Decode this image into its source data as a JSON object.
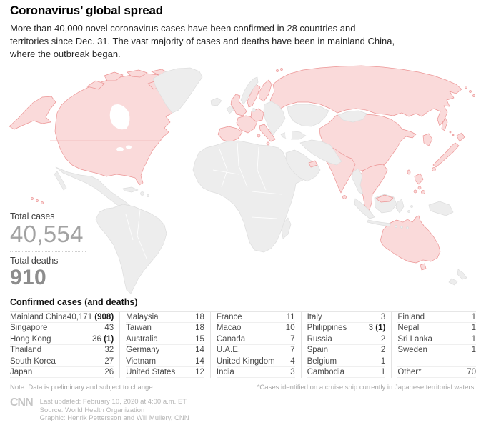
{
  "header": {
    "title": "Coronavirus’ global spread",
    "subtitle_lines": [
      "More than 40,000 novel coronavirus cases have been confirmed in 28 countries and",
      "territories since Dec. 31. The vast majority of cases and deaths have been in mainland China,",
      "where the outbreak began."
    ]
  },
  "stats": {
    "total_cases_label": "Total cases",
    "total_cases_value": "40,554",
    "total_deaths_label": "Total deaths",
    "total_deaths_value": "910"
  },
  "map": {
    "affected_fill": "#fadada",
    "affected_border": "#ec9595",
    "unaffected_fill": "#ededed",
    "unaffected_border": "#dedede",
    "total_cases_color": "#a2a2a2",
    "total_deaths_color": "#8d8d8d"
  },
  "table": {
    "title": "Confirmed cases (and deaths)",
    "columns": [
      [
        {
          "country": "Mainland China",
          "cases": "40,171",
          "deaths": "(908)"
        },
        {
          "country": "Singapore",
          "cases": "43",
          "deaths": ""
        },
        {
          "country": "Hong Kong",
          "cases": "36",
          "deaths": "(1)"
        },
        {
          "country": "Thailand",
          "cases": "32",
          "deaths": ""
        },
        {
          "country": "South Korea",
          "cases": "27",
          "deaths": ""
        },
        {
          "country": "Japan",
          "cases": "26",
          "deaths": ""
        }
      ],
      [
        {
          "country": "Malaysia",
          "cases": "18",
          "deaths": ""
        },
        {
          "country": "Taiwan",
          "cases": "18",
          "deaths": ""
        },
        {
          "country": "Australia",
          "cases": "15",
          "deaths": ""
        },
        {
          "country": "Germany",
          "cases": "14",
          "deaths": ""
        },
        {
          "country": "Vietnam",
          "cases": "14",
          "deaths": ""
        },
        {
          "country": "United States",
          "cases": "12",
          "deaths": ""
        }
      ],
      [
        {
          "country": "France",
          "cases": "11",
          "deaths": ""
        },
        {
          "country": "Macao",
          "cases": "10",
          "deaths": ""
        },
        {
          "country": "Canada",
          "cases": "7",
          "deaths": ""
        },
        {
          "country": "U.A.E.",
          "cases": "7",
          "deaths": ""
        },
        {
          "country": "United Kingdom",
          "cases": "4",
          "deaths": ""
        },
        {
          "country": "India",
          "cases": "3",
          "deaths": ""
        }
      ],
      [
        {
          "country": "Italy",
          "cases": "3",
          "deaths": ""
        },
        {
          "country": "Philippines",
          "cases": "3",
          "deaths": "(1)"
        },
        {
          "country": "Russia",
          "cases": "2",
          "deaths": ""
        },
        {
          "country": "Spain",
          "cases": "2",
          "deaths": ""
        },
        {
          "country": "Belgium",
          "cases": "1",
          "deaths": ""
        },
        {
          "country": "Cambodia",
          "cases": "1",
          "deaths": ""
        }
      ],
      [
        {
          "country": "Finland",
          "cases": "1",
          "deaths": ""
        },
        {
          "country": "Nepal",
          "cases": "1",
          "deaths": ""
        },
        {
          "country": "Sri Lanka",
          "cases": "1",
          "deaths": ""
        },
        {
          "country": "Sweden",
          "cases": "1",
          "deaths": ""
        },
        {
          "country": "",
          "cases": "",
          "deaths": ""
        },
        {
          "country": "Other*",
          "cases": "70",
          "deaths": ""
        }
      ]
    ]
  },
  "notes": {
    "left": "Note: Data is preliminary and subject to change.",
    "right": "*Cases identified on a cruise ship currently in Japanese territorial waters."
  },
  "footer": {
    "logo": "CNN",
    "credit_lines": [
      "Last updated: February 10, 2020 at 4:00 a.m. ET",
      "Source: World Health Organization",
      "Graphic: Henrik Pettersson and Will Mullery, CNN"
    ]
  }
}
